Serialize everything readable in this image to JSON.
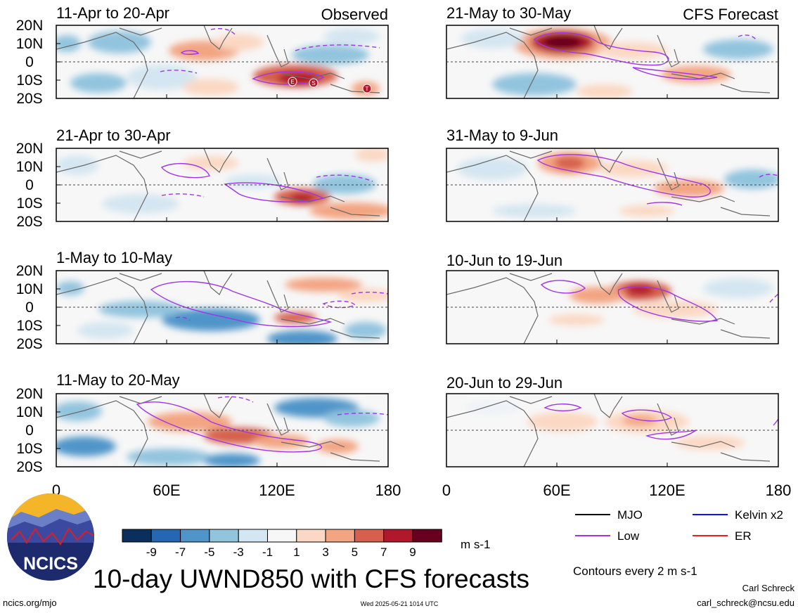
{
  "panels": [
    {
      "title": "11-Apr to 20-Apr",
      "corner": "Observed",
      "storm_marks": [
        "E",
        "S",
        "T"
      ]
    },
    {
      "title": "21-Apr to 30-Apr",
      "corner": ""
    },
    {
      "title": "1-May to 10-May",
      "corner": ""
    },
    {
      "title": "11-May to 20-May",
      "corner": ""
    },
    {
      "title": "21-May to 30-May",
      "corner": "CFS Forecast"
    },
    {
      "title": "31-May to 9-Jun",
      "corner": ""
    },
    {
      "title": "10-Jun to 19-Jun",
      "corner": ""
    },
    {
      "title": "20-Jun to 29-Jun",
      "corner": ""
    }
  ],
  "lat_labels": [
    "20N",
    "10N",
    "0",
    "10S",
    "20S"
  ],
  "lon_labels": [
    "0",
    "60E",
    "120E",
    "180"
  ],
  "colorbar": {
    "colors": [
      "#0b2f5c",
      "#2468b4",
      "#4f95c9",
      "#92c4de",
      "#d4e6f1",
      "#f7f7f7",
      "#fbd8c3",
      "#f3a482",
      "#d6604d",
      "#b2182b",
      "#67001f"
    ],
    "labels": [
      "-9",
      "-7",
      "-5",
      "-3",
      "-1",
      "1",
      "3",
      "5",
      "7",
      "9"
    ],
    "units": "m s-1"
  },
  "legend": {
    "items": [
      {
        "label": "MJO",
        "color": "#000000"
      },
      {
        "label": "Kelvin x2",
        "color": "#1010ff"
      },
      {
        "label": "Low",
        "color": "#a035e6"
      },
      {
        "label": "ER",
        "color": "#e8201a"
      }
    ],
    "contour_note": "Contours every 2 m s-1"
  },
  "title": "10-day UWND850 with CFS forecasts",
  "logo_text": "NCICS",
  "url": "ncics.org/mjo",
  "timestamp": "Wed 2025-05-21 1014 UTC",
  "author": "Carl Schreck",
  "email": "carl_schreck@ncsu.edu"
}
